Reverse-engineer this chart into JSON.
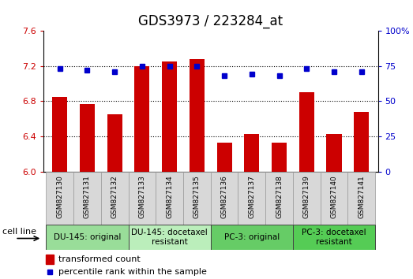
{
  "title": "GDS3973 / 223284_at",
  "samples": [
    "GSM827130",
    "GSM827131",
    "GSM827132",
    "GSM827133",
    "GSM827134",
    "GSM827135",
    "GSM827136",
    "GSM827137",
    "GSM827138",
    "GSM827139",
    "GSM827140",
    "GSM827141"
  ],
  "bar_values": [
    6.85,
    6.77,
    6.65,
    7.2,
    7.25,
    7.28,
    6.33,
    6.43,
    6.33,
    6.9,
    6.43,
    6.68
  ],
  "percentile_values": [
    73,
    72,
    71,
    75,
    75,
    75,
    68,
    69,
    68,
    73,
    71,
    71
  ],
  "ylim_left": [
    6.0,
    7.6
  ],
  "ylim_right": [
    0,
    100
  ],
  "yticks_left": [
    6.0,
    6.4,
    6.8,
    7.2,
    7.6
  ],
  "yticks_right": [
    0,
    25,
    50,
    75,
    100
  ],
  "bar_color": "#cc0000",
  "dot_color": "#0000cc",
  "cell_line_label": "cell line",
  "cell_groups": [
    {
      "label": "DU-145: original",
      "start": 0,
      "end": 3,
      "color": "#99dd99"
    },
    {
      "label": "DU-145: docetaxel\nresistant",
      "start": 3,
      "end": 6,
      "color": "#bbeebb"
    },
    {
      "label": "PC-3: original",
      "start": 6,
      "end": 9,
      "color": "#66cc66"
    },
    {
      "label": "PC-3: docetaxel\nresistant",
      "start": 9,
      "end": 12,
      "color": "#55cc55"
    }
  ],
  "legend_bar_label": "transformed count",
  "legend_dot_label": "percentile rank within the sample",
  "title_fontsize": 12,
  "tick_fontsize": 8,
  "sample_fontsize": 6.5,
  "group_fontsize": 7.5,
  "legend_fontsize": 8
}
